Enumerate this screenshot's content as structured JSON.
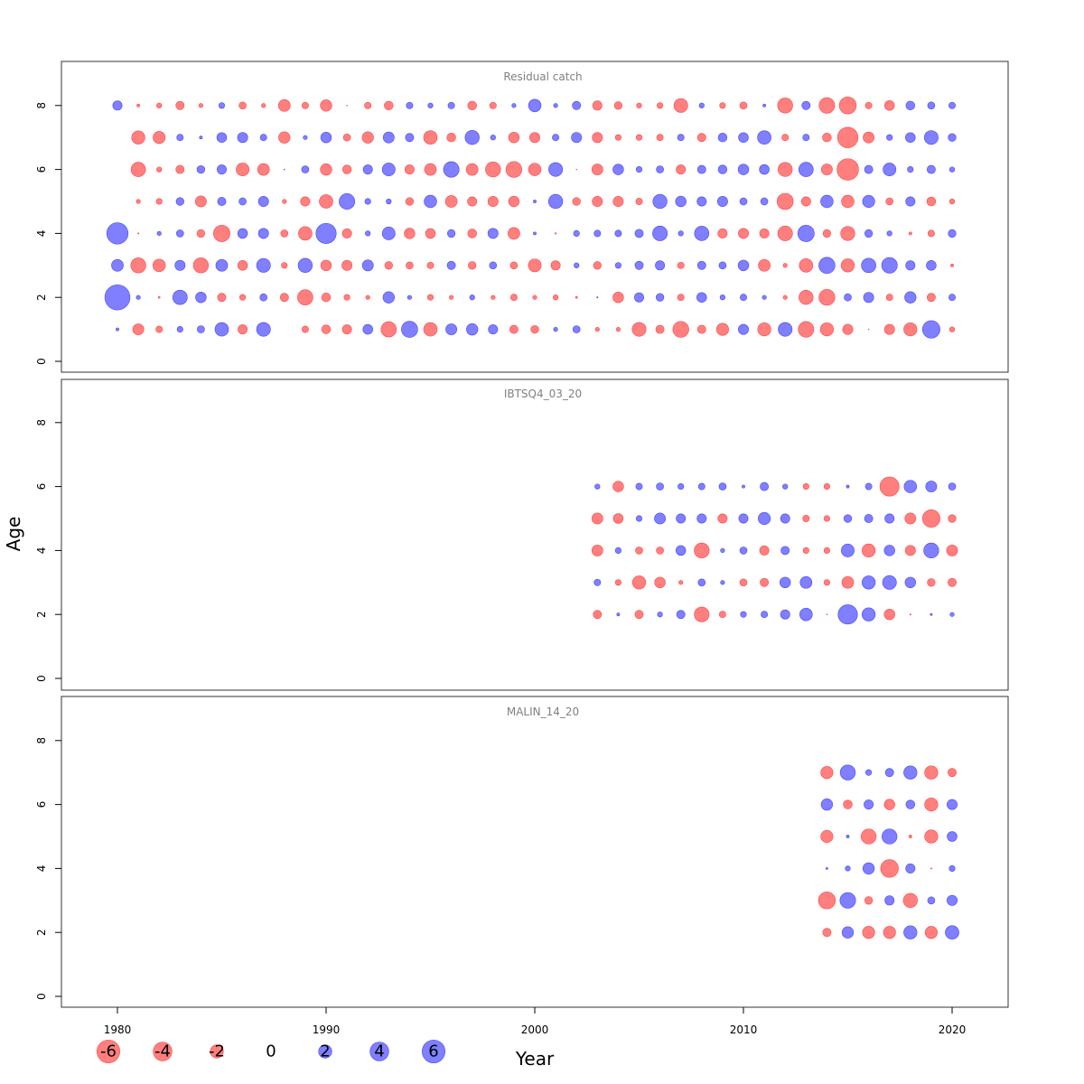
{
  "colors": {
    "negative": "#FF0000",
    "positive": "#0000FF",
    "opacity": 0.5,
    "frame": "#333333",
    "panel_title": "#808080"
  },
  "chart_data": {
    "type": "scatter",
    "subtype": "bubble",
    "xlabel": "Year",
    "ylabel": "Age",
    "xlim": [
      1978,
      2022
    ],
    "x_ticks": [
      1980,
      1990,
      2000,
      2010,
      2020
    ],
    "x_tick_labels": [
      "1980",
      "1990",
      "2000",
      "2010",
      "2020"
    ],
    "y_ticks": [
      0,
      2,
      4,
      6,
      8
    ],
    "y_tick_labels": [
      "0",
      "2",
      "4",
      "6",
      "8"
    ],
    "ylim": [
      0,
      9
    ],
    "encoding": "bubble area proportional to |residual|; red = negative, blue = positive",
    "legend": {
      "values": [
        -6,
        -4,
        -2,
        0,
        2,
        4,
        6
      ],
      "labels": [
        "-6",
        "-4",
        "-2",
        "0",
        "2",
        "4",
        "6"
      ],
      "placement": "bottom-left"
    },
    "panels": [
      {
        "title": "Residual catch",
        "years": [
          1980,
          1981,
          1982,
          1983,
          1984,
          1985,
          1986,
          1987,
          1988,
          1989,
          1990,
          1991,
          1992,
          1993,
          1994,
          1995,
          1996,
          1997,
          1998,
          1999,
          2000,
          2001,
          2002,
          2003,
          2004,
          2005,
          2006,
          2007,
          2008,
          2009,
          2010,
          2011,
          2012,
          2013,
          2014,
          2015,
          2016,
          2017,
          2018,
          2019,
          2020
        ],
        "ages": [
          {
            "age": 8,
            "values": [
              1.0,
              -0.1,
              -0.3,
              -0.8,
              -0.2,
              0.4,
              -0.6,
              -0.2,
              -1.6,
              -0.5,
              -1.5,
              -0.01,
              -0.5,
              -0.9,
              0.5,
              0.3,
              0.5,
              -0.9,
              -0.5,
              0.2,
              1.8,
              0.2,
              0.8,
              -1.0,
              -0.7,
              -0.3,
              -0.4,
              -2.2,
              0.3,
              -0.4,
              -0.6,
              0.1,
              -2.6,
              0.8,
              -2.8,
              -3.3,
              -0.5,
              -1.1,
              0.9,
              0.6,
              0.5
            ]
          },
          {
            "age": 7,
            "values": [
              null,
              -2.0,
              -1.7,
              0.5,
              0.1,
              1.1,
              1.2,
              0.5,
              -1.5,
              0.2,
              1.3,
              -0.6,
              -1.5,
              1.4,
              0.8,
              -2.1,
              -0.9,
              2.3,
              0.3,
              -1.3,
              -1.2,
              0.5,
              1.2,
              -1.2,
              -0.4,
              -0.4,
              -0.5,
              0.5,
              -0.8,
              0.9,
              1.1,
              2.1,
              -0.5,
              0.5,
              -0.9,
              -4.8,
              -1.4,
              0.4,
              1.1,
              2.2,
              0.7
            ]
          },
          {
            "age": 6,
            "values": [
              null,
              -2.4,
              -0.3,
              -0.8,
              0.7,
              1.0,
              -1.9,
              -1.6,
              0.01,
              0.6,
              -1.5,
              -0.9,
              1.0,
              1.9,
              -1.0,
              -1.6,
              2.8,
              -1.6,
              -2.6,
              -2.9,
              -1.8,
              2.2,
              -0.01,
              -1.4,
              1.3,
              0.4,
              0.6,
              -1.0,
              0.8,
              0.9,
              1.3,
              1.1,
              -2.3,
              2.4,
              -1.4,
              -5.3,
              0.8,
              1.9,
              0.4,
              0.8,
              0.3
            ]
          },
          {
            "age": 5,
            "values": [
              null,
              -0.2,
              -0.4,
              0.7,
              -1.4,
              0.8,
              0.6,
              1.2,
              -0.2,
              -1.0,
              -2.1,
              2.8,
              0.4,
              0.3,
              -0.7,
              1.8,
              -1.6,
              -1.0,
              -1.2,
              -1.3,
              0.1,
              2.3,
              -0.7,
              -1.2,
              -1.2,
              -0.5,
              2.3,
              1.3,
              1.0,
              1.2,
              0.6,
              0.6,
              -3.0,
              -1.0,
              1.8,
              -1.8,
              1.7,
              -0.6,
              1.0,
              -0.9,
              -0.3
            ]
          },
          {
            "age": 4,
            "values": [
              5.2,
              -0.02,
              0.2,
              0.6,
              -0.7,
              -3.1,
              1.1,
              1.2,
              -0.6,
              -2.1,
              4.7,
              -1.0,
              0.3,
              1.9,
              -1.3,
              -1.1,
              0.7,
              -0.9,
              1.2,
              -1.6,
              0.1,
              -0.03,
              0.4,
              0.5,
              0.5,
              0.8,
              2.5,
              0.3,
              2.4,
              -1.0,
              -1.2,
              -1.0,
              -2.5,
              3.1,
              -0.7,
              -2.3,
              0.7,
              0.3,
              -0.1,
              -0.5,
              0.7
            ]
          },
          {
            "age": 3,
            "values": [
              1.6,
              -2.6,
              -1.8,
              1.2,
              -2.6,
              1.6,
              -1.1,
              2.2,
              -0.4,
              2.3,
              -1.3,
              -1.2,
              1.4,
              -0.7,
              -0.6,
              -0.5,
              0.8,
              -0.7,
              0.6,
              -0.6,
              -1.9,
              -1.0,
              0.3,
              -0.7,
              0.4,
              0.8,
              1.0,
              -0.5,
              0.8,
              0.6,
              1.3,
              -1.6,
              -0.2,
              -2.1,
              3.0,
              -2.0,
              2.4,
              2.8,
              1.0,
              1.1,
              -0.1
            ]
          },
          {
            "age": 2,
            "values": [
              7.2,
              0.2,
              -0.04,
              2.4,
              1.3,
              -0.8,
              -0.4,
              0.6,
              -0.8,
              -2.7,
              -0.9,
              -0.4,
              -0.2,
              1.5,
              0.2,
              -0.4,
              -0.2,
              0.3,
              -0.2,
              -0.5,
              -0.2,
              -0.3,
              -0.05,
              0.02,
              -1.3,
              1.0,
              0.7,
              -0.5,
              1.1,
              0.3,
              0.5,
              0.2,
              -0.2,
              -2.3,
              -2.9,
              0.6,
              1.2,
              -0.5,
              1.5,
              -0.8,
              0.5
            ]
          },
          {
            "age": 1,
            "values": [
              0.1,
              -1.4,
              -0.5,
              0.4,
              0.6,
              2.1,
              -1.0,
              2.2,
              null,
              -0.5,
              -0.9,
              -1.0,
              1.1,
              -2.7,
              3.0,
              -2.1,
              1.4,
              1.5,
              1.0,
              -0.8,
              -0.7,
              0.2,
              0.6,
              -0.2,
              -0.2,
              -2.2,
              -0.8,
              -2.9,
              -0.8,
              -1.7,
              1.2,
              -2.0,
              2.2,
              -2.8,
              -2.0,
              -1.2,
              -0.01,
              -1.2,
              -2.0,
              3.5,
              -0.3
            ]
          }
        ]
      },
      {
        "title": "IBTSQ4_03_20",
        "years": [
          2003,
          2004,
          2005,
          2006,
          2007,
          2008,
          2009,
          2010,
          2011,
          2012,
          2013,
          2014,
          2015,
          2016,
          2017,
          2018,
          2019,
          2020
        ],
        "ages": [
          {
            "age": 6,
            "values": [
              0.3,
              -1.3,
              0.5,
              0.6,
              0.4,
              0.5,
              0.6,
              0.1,
              0.8,
              0.3,
              -0.4,
              -0.4,
              0.1,
              0.5,
              -4.2,
              1.8,
              1.4,
              0.6
            ]
          },
          {
            "age": 5,
            "values": [
              -1.4,
              -1.1,
              0.4,
              1.4,
              1.0,
              1.0,
              -1.0,
              1.0,
              1.7,
              1.0,
              -0.5,
              -0.4,
              0.7,
              0.8,
              1.0,
              -1.4,
              -3.5,
              -0.7
            ]
          },
          {
            "age": 4,
            "values": [
              -1.4,
              0.4,
              -0.6,
              -0.6,
              1.1,
              -2.6,
              0.2,
              0.6,
              -1.0,
              0.8,
              -0.4,
              -0.4,
              1.9,
              -2.0,
              1.3,
              -1.2,
              2.6,
              -1.4
            ]
          },
          {
            "age": 3,
            "values": [
              0.5,
              -0.4,
              -2.0,
              -1.3,
              -0.2,
              0.6,
              0.2,
              -0.6,
              -0.8,
              1.3,
              1.6,
              -0.4,
              -1.6,
              2.0,
              2.2,
              1.3,
              -0.7,
              -0.8
            ]
          },
          {
            "age": 2,
            "values": [
              -0.8,
              0.1,
              -0.8,
              0.3,
              0.8,
              -2.5,
              -0.5,
              0.4,
              0.5,
              1.0,
              1.8,
              -0.01,
              4.3,
              2.0,
              -1.3,
              -0.02,
              0.05,
              0.2
            ]
          }
        ]
      },
      {
        "title": "MALIN_14_20",
        "years": [
          2014,
          2015,
          2016,
          2017,
          2018,
          2019,
          2020
        ],
        "ages": [
          {
            "age": 7,
            "values": [
              -1.7,
              2.6,
              0.4,
              0.8,
              2.0,
              -2.0,
              -0.8
            ]
          },
          {
            "age": 6,
            "values": [
              1.5,
              -0.9,
              1.0,
              -1.3,
              0.9,
              -2.0,
              1.2
            ]
          },
          {
            "age": 5,
            "values": [
              -1.7,
              0.1,
              -2.6,
              2.6,
              -0.1,
              -2.0,
              1.1
            ]
          },
          {
            "age": 4,
            "values": [
              0.05,
              0.3,
              1.5,
              -3.6,
              1.0,
              -0.02,
              0.4
            ]
          },
          {
            "age": 3,
            "values": [
              -3.3,
              2.8,
              -0.7,
              1.0,
              -2.3,
              0.6,
              1.2
            ]
          },
          {
            "age": 2,
            "values": [
              -0.8,
              1.5,
              -1.7,
              -1.7,
              2.0,
              -1.7,
              2.1
            ]
          }
        ]
      }
    ]
  }
}
